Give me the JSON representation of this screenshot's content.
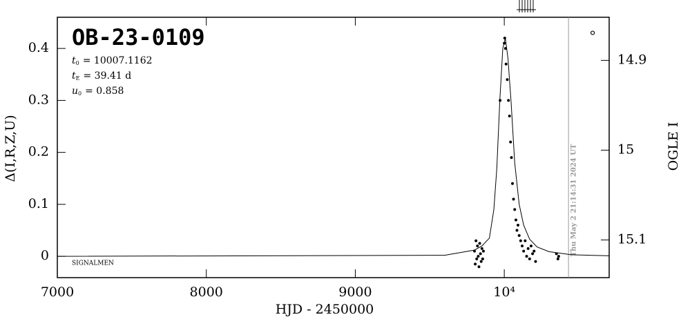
{
  "chart_data": {
    "type": "line",
    "title": "OB-23-0109",
    "parameters": [
      {
        "symbol": "t",
        "sub": "0",
        "text": "= 10007.1162"
      },
      {
        "symbol": "t",
        "sub": "E",
        "text": "= 39.41 d"
      },
      {
        "symbol": "u",
        "sub": "0",
        "text": "= 0.858"
      }
    ],
    "annotation": "SIGNALMEN",
    "timestamp": "Thu May  2 21:14:31 2024 UT",
    "x_label": "HJD - 2450000",
    "y_label": "Δ(I,R,Z,U)",
    "y2_label": "OGLE I",
    "xlim": [
      7000,
      10704
    ],
    "ylim": [
      -0.041,
      0.46
    ],
    "y2lim": [
      15.142,
      14.852
    ],
    "xticks": [
      7000,
      8000,
      9000,
      {
        "value": 10000,
        "label": "10⁴"
      }
    ],
    "yticks": [
      0,
      0.1,
      0.2,
      0.3,
      0.4
    ],
    "y2ticks": [
      14.9,
      15,
      15.1
    ],
    "now_line": 10431,
    "series": [
      {
        "style": "line",
        "color": "#000000",
        "x": [
          7000,
          9600,
          9800,
          9850,
          9900,
          9930,
          9950,
          9970,
          9990,
          10007,
          10025,
          10045,
          10070,
          10100,
          10130,
          10170,
          10220,
          10300,
          10450,
          10704
        ],
        "values": [
          0,
          0.002,
          0.012,
          0.02,
          0.035,
          0.09,
          0.17,
          0.3,
          0.4,
          0.42,
          0.38,
          0.3,
          0.18,
          0.1,
          0.06,
          0.033,
          0.018,
          0.009,
          0.003,
          0.001
        ]
      },
      {
        "style": "markers",
        "color": "#000000",
        "x": [
          9800,
          9805,
          9810,
          9815,
          9820,
          9825,
          9830,
          9835,
          9840,
          9845,
          9850,
          9855,
          9860,
          9972,
          10000,
          10003,
          10008,
          10012,
          10020,
          10028,
          10035,
          10042,
          10048,
          10055,
          10062,
          10070,
          10078,
          10085,
          10092,
          10100,
          10110,
          10120,
          10130,
          10140,
          10150,
          10160,
          10170,
          10180,
          10190,
          10200,
          10210,
          10350,
          10360,
          10365
        ],
        "values": [
          0.01,
          -0.015,
          0.03,
          -0.005,
          0.02,
          0,
          -0.02,
          0.025,
          0.005,
          -0.01,
          0.015,
          -0.005,
          0.01,
          0.3,
          0.41,
          0.42,
          0.4,
          0.37,
          0.34,
          0.3,
          0.27,
          0.22,
          0.19,
          0.14,
          0.11,
          0.09,
          0.07,
          0.05,
          0.06,
          0.04,
          0.03,
          0.02,
          0.01,
          0.03,
          0,
          0.015,
          -0.005,
          0.02,
          0.005,
          0.01,
          -0.01,
          0.005,
          -0.005,
          0
        ]
      },
      {
        "style": "open-markers",
        "color": "#000000",
        "x": [
          10593
        ],
        "values": [
          0.43
        ]
      }
    ]
  }
}
